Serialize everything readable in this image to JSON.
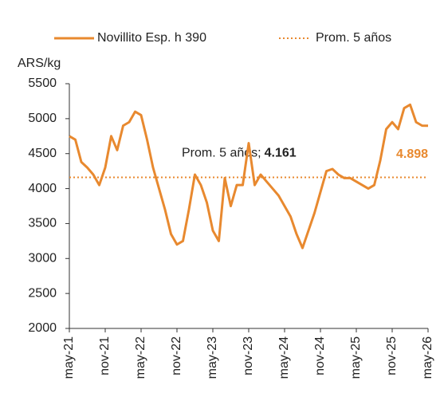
{
  "chart_data": {
    "type": "line",
    "y_axis_label": "ARS/kg",
    "categories": [
      "may-21",
      null,
      null,
      null,
      null,
      null,
      "nov-21",
      null,
      null,
      null,
      null,
      null,
      "may-22",
      null,
      null,
      null,
      null,
      null,
      "nov-22",
      null,
      null,
      null,
      null,
      null,
      "may-23",
      null,
      null,
      null,
      null,
      null,
      "nov-23",
      null,
      null,
      null,
      null,
      null,
      "may-24",
      null,
      null,
      null,
      null,
      null,
      "nov-24",
      null,
      null,
      null,
      null,
      null,
      "may-25",
      null,
      null,
      null,
      null,
      null,
      "nov-25",
      null,
      null,
      null,
      null,
      null,
      "may-26"
    ],
    "series": [
      {
        "name": "Novillito Esp. h 390",
        "color": "#e8892f",
        "values": [
          4750,
          4700,
          4380,
          4300,
          4200,
          4050,
          4300,
          4750,
          4550,
          4900,
          4950,
          5100,
          5050,
          4700,
          4300,
          4000,
          3700,
          3350,
          3200,
          3250,
          3700,
          4200,
          4050,
          3800,
          3400,
          3250,
          4150,
          3750,
          4050,
          4050,
          4650,
          4050,
          4200,
          4100,
          4000,
          3900,
          3750,
          3600,
          3350,
          3150,
          3400,
          3650,
          3950,
          4250,
          4280,
          4200,
          4150,
          4150,
          4100,
          4050,
          4000,
          4050,
          4400,
          4850,
          4950,
          4850,
          5150,
          5200,
          4950,
          4900,
          4898
        ],
        "value_labels": [
          null,
          null,
          null,
          null,
          null,
          null,
          null,
          null,
          null,
          null,
          null,
          null,
          null,
          null,
          null,
          null,
          null,
          null,
          null,
          null,
          null,
          null,
          null,
          null,
          null,
          null,
          null,
          null,
          null,
          null,
          null,
          null,
          null,
          null,
          null,
          null,
          null,
          null,
          null,
          null,
          null,
          null,
          null,
          null,
          null,
          null,
          null,
          null,
          null,
          null,
          null,
          null,
          null,
          null,
          null,
          null,
          null,
          null,
          null,
          null,
          "4.898"
        ]
      }
    ],
    "average": {
      "name": "Prom. 5 años",
      "annotation": "Prom. 5 años;",
      "value": 4161,
      "label": "4.161",
      "color": "#e8892f"
    },
    "ylim": [
      2000,
      5500
    ],
    "yticks": [
      2000,
      2500,
      3000,
      3500,
      4000,
      4500,
      5000,
      5500
    ]
  }
}
